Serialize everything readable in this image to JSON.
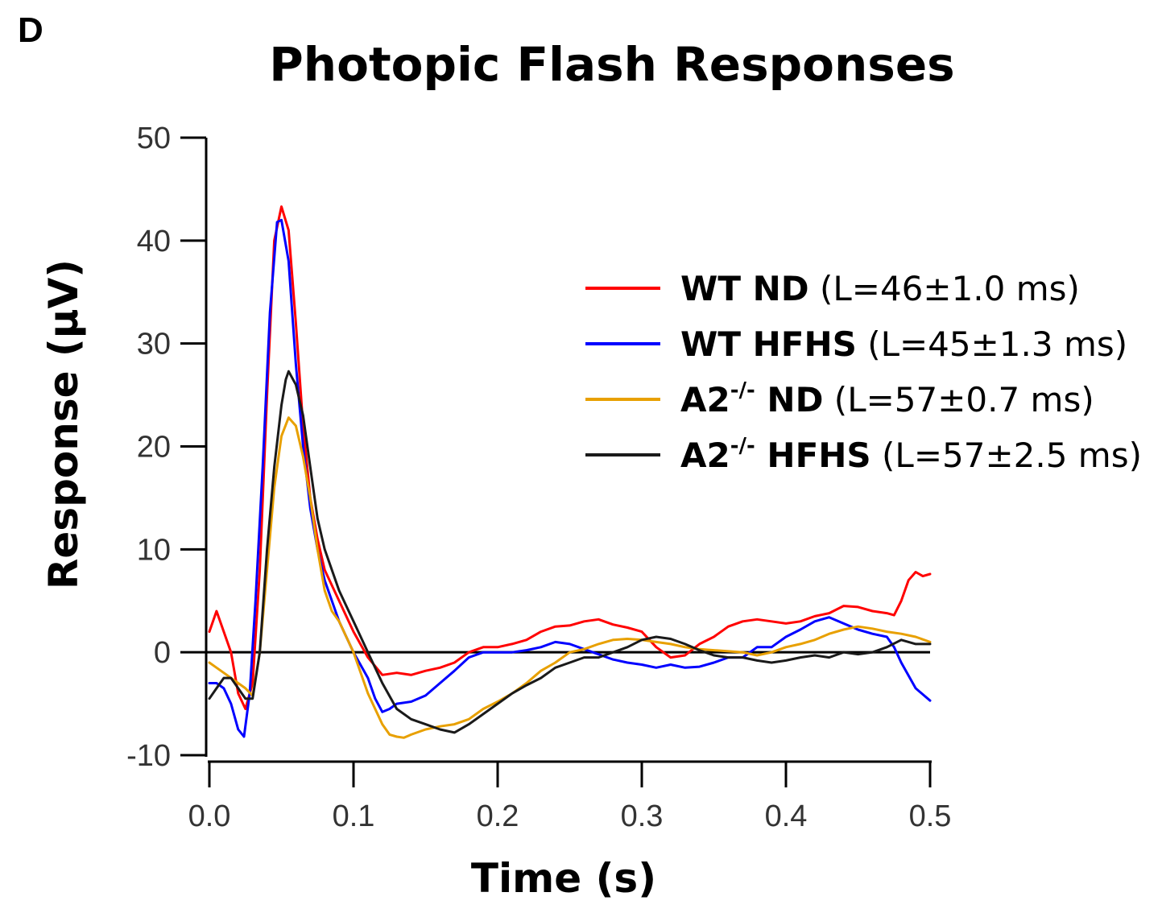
{
  "panel_letter": "D",
  "chart_data": {
    "type": "line",
    "title": "Photopic Flash Responses",
    "xlabel": "Time (s)",
    "ylabel": "Response (µV)",
    "xlim": [
      0,
      0.5
    ],
    "ylim": [
      -10,
      50
    ],
    "xticks": [
      "0.0",
      "0.1",
      "0.2",
      "0.3",
      "0.4",
      "0.5"
    ],
    "yticks": [
      "-10",
      "0",
      "10",
      "20",
      "30",
      "40",
      "50"
    ],
    "grid": false,
    "legend_position": "right",
    "series": [
      {
        "name": "WT ND",
        "bold": "WT ND",
        "sup": "",
        "bold_after": "",
        "detail": "(L=46±1.0 ms)",
        "color": "#ff0000",
        "points": [
          [
            0,
            2
          ],
          [
            0.005,
            4
          ],
          [
            0.01,
            2
          ],
          [
            0.015,
            0
          ],
          [
            0.02,
            -4
          ],
          [
            0.025,
            -5.5
          ],
          [
            0.03,
            -3
          ],
          [
            0.035,
            8
          ],
          [
            0.04,
            25
          ],
          [
            0.045,
            40
          ],
          [
            0.05,
            43.3
          ],
          [
            0.055,
            41
          ],
          [
            0.06,
            32
          ],
          [
            0.065,
            22
          ],
          [
            0.07,
            15
          ],
          [
            0.075,
            11
          ],
          [
            0.08,
            8
          ],
          [
            0.09,
            5
          ],
          [
            0.1,
            2
          ],
          [
            0.11,
            -0.5
          ],
          [
            0.12,
            -2.2
          ],
          [
            0.13,
            -2.0
          ],
          [
            0.14,
            -2.2
          ],
          [
            0.15,
            -1.8
          ],
          [
            0.16,
            -1.5
          ],
          [
            0.17,
            -1
          ],
          [
            0.18,
            0
          ],
          [
            0.19,
            0.5
          ],
          [
            0.2,
            0.5
          ],
          [
            0.21,
            0.8
          ],
          [
            0.22,
            1.2
          ],
          [
            0.23,
            2
          ],
          [
            0.24,
            2.5
          ],
          [
            0.25,
            2.6
          ],
          [
            0.26,
            3.0
          ],
          [
            0.27,
            3.2
          ],
          [
            0.28,
            2.7
          ],
          [
            0.29,
            2.4
          ],
          [
            0.3,
            2.0
          ],
          [
            0.31,
            0.5
          ],
          [
            0.32,
            -0.5
          ],
          [
            0.33,
            -0.3
          ],
          [
            0.34,
            0.8
          ],
          [
            0.35,
            1.5
          ],
          [
            0.36,
            2.5
          ],
          [
            0.37,
            3.0
          ],
          [
            0.38,
            3.2
          ],
          [
            0.39,
            3.0
          ],
          [
            0.4,
            2.8
          ],
          [
            0.41,
            3.0
          ],
          [
            0.42,
            3.5
          ],
          [
            0.43,
            3.8
          ],
          [
            0.44,
            4.5
          ],
          [
            0.45,
            4.4
          ],
          [
            0.46,
            4.0
          ],
          [
            0.47,
            3.8
          ],
          [
            0.475,
            3.6
          ],
          [
            0.48,
            5
          ],
          [
            0.485,
            7
          ],
          [
            0.49,
            7.8
          ],
          [
            0.495,
            7.4
          ],
          [
            0.5,
            7.6
          ]
        ]
      },
      {
        "name": "WT HFHS",
        "bold": "WT HFHS",
        "sup": "",
        "bold_after": "",
        "detail": "(L=45±1.3 ms)",
        "color": "#0000ff",
        "points": [
          [
            0,
            -3
          ],
          [
            0.005,
            -3
          ],
          [
            0.01,
            -3.5
          ],
          [
            0.015,
            -5
          ],
          [
            0.02,
            -7.5
          ],
          [
            0.024,
            -8.2
          ],
          [
            0.028,
            -4
          ],
          [
            0.032,
            5
          ],
          [
            0.037,
            18
          ],
          [
            0.042,
            33
          ],
          [
            0.047,
            41.8
          ],
          [
            0.05,
            42
          ],
          [
            0.055,
            38
          ],
          [
            0.06,
            28
          ],
          [
            0.065,
            20
          ],
          [
            0.07,
            14
          ],
          [
            0.075,
            10
          ],
          [
            0.08,
            7
          ],
          [
            0.09,
            3
          ],
          [
            0.1,
            0
          ],
          [
            0.11,
            -2.5
          ],
          [
            0.115,
            -4.5
          ],
          [
            0.12,
            -5.8
          ],
          [
            0.125,
            -5.5
          ],
          [
            0.13,
            -5
          ],
          [
            0.14,
            -4.8
          ],
          [
            0.15,
            -4.2
          ],
          [
            0.16,
            -3
          ],
          [
            0.17,
            -1.8
          ],
          [
            0.18,
            -0.5
          ],
          [
            0.19,
            0
          ],
          [
            0.2,
            0
          ],
          [
            0.21,
            0
          ],
          [
            0.22,
            0.2
          ],
          [
            0.23,
            0.5
          ],
          [
            0.24,
            1.0
          ],
          [
            0.25,
            0.8
          ],
          [
            0.26,
            0.3
          ],
          [
            0.27,
            -0.2
          ],
          [
            0.28,
            -0.7
          ],
          [
            0.29,
            -1.0
          ],
          [
            0.3,
            -1.2
          ],
          [
            0.31,
            -1.5
          ],
          [
            0.32,
            -1.2
          ],
          [
            0.33,
            -1.5
          ],
          [
            0.34,
            -1.4
          ],
          [
            0.35,
            -1
          ],
          [
            0.36,
            -0.5
          ],
          [
            0.37,
            -0.5
          ],
          [
            0.38,
            0.5
          ],
          [
            0.39,
            0.5
          ],
          [
            0.4,
            1.5
          ],
          [
            0.41,
            2.2
          ],
          [
            0.42,
            3.0
          ],
          [
            0.43,
            3.4
          ],
          [
            0.44,
            2.8
          ],
          [
            0.45,
            2.2
          ],
          [
            0.46,
            1.8
          ],
          [
            0.47,
            1.5
          ],
          [
            0.475,
            0.5
          ],
          [
            0.48,
            -1
          ],
          [
            0.49,
            -3.5
          ],
          [
            0.5,
            -4.7
          ]
        ]
      },
      {
        "name": "A2-/- ND",
        "bold": "A2",
        "sup": "-/-",
        "bold_after": " ND",
        "detail": "(L=57±0.7 ms)",
        "color": "#e8a000",
        "points": [
          [
            0,
            -1
          ],
          [
            0.005,
            -1.5
          ],
          [
            0.01,
            -2
          ],
          [
            0.015,
            -2.5
          ],
          [
            0.02,
            -3
          ],
          [
            0.025,
            -3.5
          ],
          [
            0.03,
            -4.2
          ],
          [
            0.035,
            0
          ],
          [
            0.04,
            8
          ],
          [
            0.045,
            16
          ],
          [
            0.05,
            21
          ],
          [
            0.055,
            22.8
          ],
          [
            0.06,
            22
          ],
          [
            0.065,
            19
          ],
          [
            0.07,
            15
          ],
          [
            0.075,
            10
          ],
          [
            0.08,
            6
          ],
          [
            0.085,
            4
          ],
          [
            0.09,
            3
          ],
          [
            0.1,
            0
          ],
          [
            0.11,
            -4
          ],
          [
            0.12,
            -7
          ],
          [
            0.125,
            -8
          ],
          [
            0.13,
            -8.2
          ],
          [
            0.135,
            -8.3
          ],
          [
            0.14,
            -8.0
          ],
          [
            0.15,
            -7.5
          ],
          [
            0.16,
            -7.2
          ],
          [
            0.17,
            -7.0
          ],
          [
            0.18,
            -6.5
          ],
          [
            0.19,
            -5.5
          ],
          [
            0.2,
            -4.8
          ],
          [
            0.21,
            -4
          ],
          [
            0.22,
            -3.0
          ],
          [
            0.23,
            -1.8
          ],
          [
            0.24,
            -1
          ],
          [
            0.25,
            0
          ],
          [
            0.26,
            0.3
          ],
          [
            0.27,
            0.8
          ],
          [
            0.28,
            1.2
          ],
          [
            0.29,
            1.3
          ],
          [
            0.3,
            1.2
          ],
          [
            0.31,
            1.0
          ],
          [
            0.32,
            0.8
          ],
          [
            0.33,
            0.5
          ],
          [
            0.34,
            0.3
          ],
          [
            0.35,
            0.2
          ],
          [
            0.36,
            0.1
          ],
          [
            0.37,
            0
          ],
          [
            0.38,
            -0.3
          ],
          [
            0.39,
            0
          ],
          [
            0.4,
            0.5
          ],
          [
            0.41,
            0.8
          ],
          [
            0.42,
            1.2
          ],
          [
            0.43,
            1.8
          ],
          [
            0.44,
            2.2
          ],
          [
            0.45,
            2.5
          ],
          [
            0.46,
            2.3
          ],
          [
            0.47,
            2.0
          ],
          [
            0.48,
            1.8
          ],
          [
            0.49,
            1.5
          ],
          [
            0.5,
            1.0
          ]
        ]
      },
      {
        "name": "A2-/- HFHS",
        "bold": "A2",
        "sup": "-/-",
        "bold_after": " HFHS",
        "detail": "(L=57±2.5 ms)",
        "color": "#1a1a1a",
        "points": [
          [
            0,
            -4.5
          ],
          [
            0.005,
            -3.5
          ],
          [
            0.01,
            -2.5
          ],
          [
            0.015,
            -2.5
          ],
          [
            0.02,
            -3.5
          ],
          [
            0.025,
            -4.5
          ],
          [
            0.03,
            -4.5
          ],
          [
            0.035,
            0
          ],
          [
            0.04,
            10
          ],
          [
            0.045,
            18
          ],
          [
            0.05,
            24
          ],
          [
            0.053,
            26.5
          ],
          [
            0.055,
            27.3
          ],
          [
            0.06,
            26
          ],
          [
            0.065,
            23
          ],
          [
            0.07,
            18
          ],
          [
            0.075,
            13
          ],
          [
            0.08,
            10
          ],
          [
            0.09,
            6
          ],
          [
            0.1,
            3
          ],
          [
            0.11,
            0
          ],
          [
            0.12,
            -3
          ],
          [
            0.13,
            -5.5
          ],
          [
            0.14,
            -6.5
          ],
          [
            0.15,
            -7
          ],
          [
            0.16,
            -7.5
          ],
          [
            0.17,
            -7.8
          ],
          [
            0.18,
            -7
          ],
          [
            0.19,
            -6
          ],
          [
            0.2,
            -5
          ],
          [
            0.21,
            -4
          ],
          [
            0.22,
            -3.2
          ],
          [
            0.23,
            -2.5
          ],
          [
            0.24,
            -1.5
          ],
          [
            0.25,
            -1
          ],
          [
            0.26,
            -0.5
          ],
          [
            0.27,
            -0.5
          ],
          [
            0.28,
            0
          ],
          [
            0.29,
            0.5
          ],
          [
            0.3,
            1.2
          ],
          [
            0.31,
            1.5
          ],
          [
            0.32,
            1.3
          ],
          [
            0.33,
            0.8
          ],
          [
            0.34,
            0.2
          ],
          [
            0.35,
            -0.3
          ],
          [
            0.36,
            -0.5
          ],
          [
            0.37,
            -0.5
          ],
          [
            0.38,
            -0.8
          ],
          [
            0.39,
            -1.0
          ],
          [
            0.4,
            -0.8
          ],
          [
            0.41,
            -0.5
          ],
          [
            0.42,
            -0.3
          ],
          [
            0.43,
            -0.5
          ],
          [
            0.44,
            0
          ],
          [
            0.45,
            -0.2
          ],
          [
            0.46,
            0
          ],
          [
            0.47,
            0.5
          ],
          [
            0.48,
            1.2
          ],
          [
            0.49,
            0.8
          ],
          [
            0.5,
            0.8
          ]
        ]
      }
    ]
  }
}
